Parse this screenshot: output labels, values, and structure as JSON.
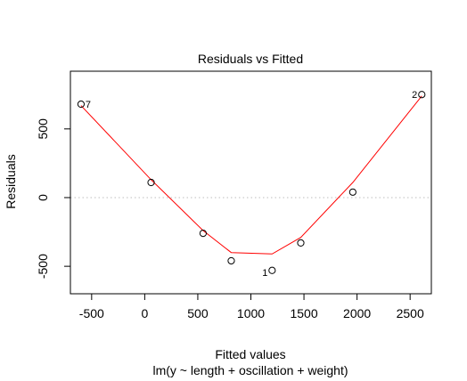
{
  "chart_data": {
    "type": "scatter",
    "title": "Residuals vs Fitted",
    "xlabel": "Fitted values",
    "subtitle": "lm(y ~ length + oscillation + weight)",
    "ylabel": "Residuals",
    "xlim": [
      -700,
      2700
    ],
    "ylim": [
      -700,
      920
    ],
    "x_ticks": [
      -500,
      0,
      500,
      1000,
      1500,
      2000,
      2500
    ],
    "x_tick_labels": [
      "-500",
      "0",
      "500",
      "1000",
      "1500",
      "2000",
      "2500"
    ],
    "y_ticks": [
      -500,
      0,
      500
    ],
    "y_tick_labels": [
      "-500",
      "0",
      "500"
    ],
    "reference_line": 0,
    "points": [
      {
        "x": -600,
        "y": 680,
        "label": "7"
      },
      {
        "x": 60,
        "y": 110,
        "label": ""
      },
      {
        "x": 550,
        "y": -260,
        "label": ""
      },
      {
        "x": 815,
        "y": -460,
        "label": ""
      },
      {
        "x": 1200,
        "y": -530,
        "label": "1"
      },
      {
        "x": 1470,
        "y": -330,
        "label": ""
      },
      {
        "x": 1960,
        "y": 40,
        "label": ""
      },
      {
        "x": 2610,
        "y": 750,
        "label": "2"
      }
    ],
    "smooth_line": {
      "x": [
        -600,
        60,
        550,
        815,
        1200,
        1470,
        1960,
        2610
      ],
      "y": [
        670,
        130,
        -240,
        -400,
        -410,
        -290,
        110,
        740
      ]
    },
    "colors": {
      "smooth": "#ff0000",
      "points": "#000000",
      "reference": "#bebebe"
    }
  }
}
